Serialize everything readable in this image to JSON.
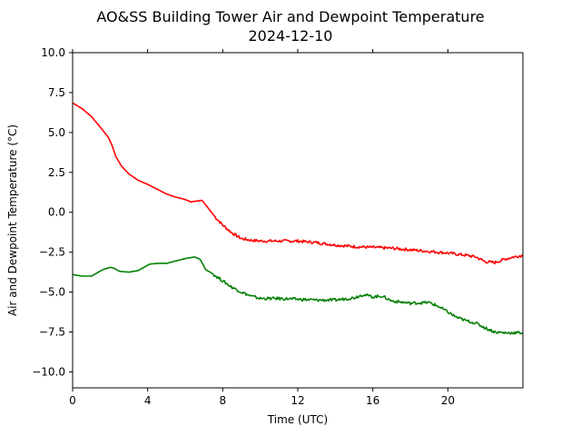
{
  "chart_data": {
    "type": "line",
    "title": "AO&SS Building Tower Air and Dewpoint Temperature",
    "subtitle": "2024-12-10",
    "xlabel": "Time (UTC)",
    "ylabel": "Air and Dewpoint Temperature (°C)",
    "xlim": [
      0,
      24
    ],
    "ylim": [
      -11,
      10
    ],
    "xticks": [
      0,
      4,
      8,
      12,
      16,
      20
    ],
    "yticks": [
      10.0,
      7.5,
      5.0,
      2.5,
      0.0,
      -2.5,
      -5.0,
      -7.5,
      -10.0
    ],
    "ytick_labels": [
      "10.0",
      "7.5",
      "5.0",
      "2.5",
      "0.0",
      "−2.5",
      "−5.0",
      "−7.5",
      "−10.0"
    ],
    "grid": false,
    "series": [
      {
        "color": "#ff0000",
        "x": [
          0,
          0.5,
          1,
          1.5,
          1.9,
          2.1,
          2.3,
          2.6,
          3,
          3.5,
          4,
          4.5,
          5,
          5.5,
          6,
          6.3,
          6.6,
          6.9,
          7.2,
          7.6,
          8,
          8.5,
          9,
          9.5,
          10,
          11,
          12,
          13,
          14,
          15,
          16,
          17,
          18,
          19,
          20,
          21,
          21.5,
          22,
          22.5,
          23,
          23.5,
          24
        ],
        "y": [
          6.85,
          6.5,
          6.0,
          5.3,
          4.7,
          4.2,
          3.5,
          2.9,
          2.4,
          2.0,
          1.75,
          1.45,
          1.15,
          0.95,
          0.8,
          0.65,
          0.7,
          0.75,
          0.3,
          -0.3,
          -0.8,
          -1.3,
          -1.65,
          -1.75,
          -1.8,
          -1.8,
          -1.8,
          -1.9,
          -2.05,
          -2.15,
          -2.2,
          -2.25,
          -2.35,
          -2.45,
          -2.55,
          -2.7,
          -2.8,
          -3.1,
          -3.15,
          -2.95,
          -2.8,
          -2.7
        ]
      },
      {
        "color": "#008000",
        "x": [
          0,
          0.5,
          1,
          1.3,
          1.6,
          2,
          2.2,
          2.5,
          3,
          3.5,
          3.8,
          4.1,
          4.5,
          5,
          5.5,
          6,
          6.5,
          6.8,
          7.1,
          7.4,
          8,
          8.5,
          9,
          9.5,
          10,
          11,
          12,
          13,
          14,
          15,
          15.5,
          16,
          16.5,
          17,
          18,
          19,
          19.5,
          20,
          20.5,
          21,
          21.5,
          22,
          22.5,
          23,
          23.5,
          24
        ],
        "y": [
          -3.9,
          -4.0,
          -4.0,
          -3.8,
          -3.6,
          -3.45,
          -3.5,
          -3.7,
          -3.75,
          -3.65,
          -3.45,
          -3.25,
          -3.2,
          -3.2,
          -3.05,
          -2.9,
          -2.8,
          -2.95,
          -3.6,
          -3.8,
          -4.3,
          -4.7,
          -5.0,
          -5.25,
          -5.4,
          -5.4,
          -5.45,
          -5.5,
          -5.5,
          -5.35,
          -5.15,
          -5.3,
          -5.25,
          -5.55,
          -5.7,
          -5.65,
          -5.9,
          -6.25,
          -6.6,
          -6.8,
          -6.95,
          -7.25,
          -7.5,
          -7.55,
          -7.55,
          -7.55
        ]
      }
    ]
  }
}
